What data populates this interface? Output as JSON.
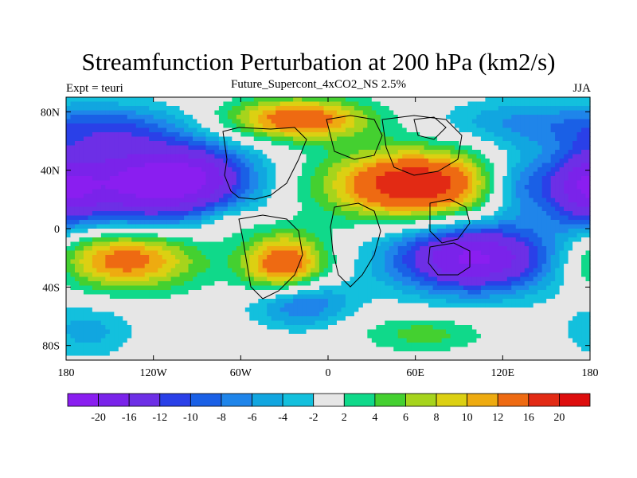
{
  "title": "Streamfunction Perturbation at 200 hPa (km2/s)",
  "left_string": "Expt = teuri",
  "center_string": "Future_Supercont_4xCO2_NS 2.5%",
  "right_string": "JJA",
  "chart_data": {
    "type": "heatmap",
    "title": "Streamfunction Perturbation at 200 hPa (km2/s)",
    "subtitle": "Future_Supercont_4xCO2_NS 2.5%",
    "xlabel": "",
    "ylabel": "",
    "xlim": [
      -180,
      180
    ],
    "ylim": [
      -90,
      90
    ],
    "x_ticks": [
      {
        "value": -180,
        "label": "180"
      },
      {
        "value": -120,
        "label": "120W"
      },
      {
        "value": -60,
        "label": "60W"
      },
      {
        "value": 0,
        "label": "0"
      },
      {
        "value": 60,
        "label": "60E"
      },
      {
        "value": 120,
        "label": "120E"
      },
      {
        "value": 180,
        "label": "180"
      }
    ],
    "y_ticks": [
      {
        "value": 80,
        "label": "80N"
      },
      {
        "value": 40,
        "label": "40N"
      },
      {
        "value": 0,
        "label": "0"
      },
      {
        "value": -40,
        "label": "40S"
      },
      {
        "value": -80,
        "label": "80S"
      }
    ],
    "contour_levels": [
      -20,
      -16,
      -12,
      -10,
      -8,
      -6,
      -4,
      -2,
      2,
      4,
      6,
      8,
      10,
      12,
      16,
      20
    ],
    "level_labels": [
      "-20",
      "-16",
      "-12",
      "-10",
      "-8",
      "-6",
      "-4",
      "-2",
      "2",
      "4",
      "6",
      "8",
      "10",
      "12",
      "16",
      "20"
    ],
    "colors": [
      "#8a1ef0",
      "#7a23ea",
      "#6d2fe6",
      "#2a40e8",
      "#1a60e6",
      "#1f85ea",
      "#11a6e0",
      "#13c0dd",
      "#e6e6e6",
      "#10d98a",
      "#44d030",
      "#a6d41c",
      "#dcd012",
      "#eeab10",
      "#ee6a12",
      "#e22a14",
      "#dd0d0d"
    ],
    "field_features": [
      {
        "lon": -135,
        "lat": 30,
        "value": -18,
        "sx": 42,
        "sy": 22
      },
      {
        "lon": -90,
        "lat": 35,
        "value": -12,
        "sx": 30,
        "sy": 16
      },
      {
        "lon": -150,
        "lat": 70,
        "value": -7,
        "sx": 35,
        "sy": 12
      },
      {
        "lon": 100,
        "lat": -20,
        "value": -21,
        "sx": 40,
        "sy": 17
      },
      {
        "lon": 130,
        "lat": 30,
        "value": -9,
        "sx": 18,
        "sy": 15
      },
      {
        "lon": 175,
        "lat": 28,
        "value": -12,
        "sx": 18,
        "sy": 18
      },
      {
        "lon": 130,
        "lat": 72,
        "value": -6,
        "sx": 38,
        "sy": 12
      },
      {
        "lon": -20,
        "lat": -50,
        "value": -10,
        "sx": 24,
        "sy": 12
      },
      {
        "lon": -165,
        "lat": -70,
        "value": -5,
        "sx": 22,
        "sy": 13
      },
      {
        "lon": 60,
        "lat": 30,
        "value": 20,
        "sx": 42,
        "sy": 17
      },
      {
        "lon": -20,
        "lat": 75,
        "value": 15,
        "sx": 34,
        "sy": 10
      },
      {
        "lon": -140,
        "lat": -20,
        "value": 15,
        "sx": 36,
        "sy": 15
      },
      {
        "lon": -30,
        "lat": -25,
        "value": 16,
        "sx": 20,
        "sy": 15
      },
      {
        "lon": 65,
        "lat": -72,
        "value": 5,
        "sx": 30,
        "sy": 9
      },
      {
        "lon": -70,
        "lat": 5,
        "value": 3,
        "sx": 15,
        "sy": 8
      }
    ]
  }
}
